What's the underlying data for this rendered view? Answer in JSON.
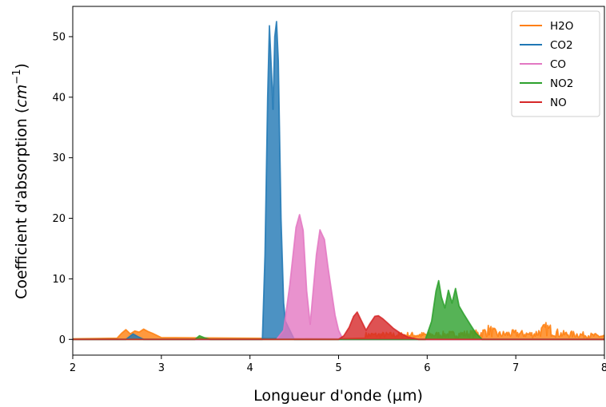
{
  "chart_data": {
    "type": "area",
    "xlabel": "Longueur d'onde (µm)",
    "ylabel_main": "Coefficient d'absorption (",
    "ylabel_unit": "cm",
    "ylabel_exp": "−1",
    "ylabel_close": ")",
    "xlim": [
      2,
      8
    ],
    "ylim": [
      -2.6,
      55
    ],
    "xticks": [
      2,
      3,
      4,
      5,
      6,
      7,
      8
    ],
    "yticks": [
      0,
      10,
      20,
      30,
      40,
      50
    ],
    "legend_position": "top-right",
    "grid": false,
    "series": [
      {
        "name": "H2O",
        "color": "#ff7f0e",
        "noise": {
          "from": 5.3,
          "to": 8.0,
          "amp": 1.2
        },
        "x": [
          2.0,
          2.5,
          2.55,
          2.6,
          2.65,
          2.7,
          2.75,
          2.8,
          2.85,
          2.9,
          3.0,
          5.0,
          5.3,
          6.0,
          6.6,
          6.7,
          6.8,
          7.0,
          7.2,
          7.35,
          7.5,
          7.7,
          8.0
        ],
        "y": [
          0.1,
          0.2,
          1.0,
          1.6,
          0.9,
          1.4,
          1.2,
          1.7,
          1.3,
          1.0,
          0.3,
          0.1,
          0.9,
          0.9,
          1.2,
          1.9,
          1.0,
          1.2,
          1.0,
          2.2,
          1.1,
          1.0,
          0.6
        ]
      },
      {
        "name": "CO2",
        "color": "#1f77b4",
        "x": [
          2.0,
          2.6,
          2.68,
          2.73,
          2.8,
          4.14,
          4.17,
          4.2,
          4.22,
          4.24,
          4.26,
          4.28,
          4.3,
          4.32,
          4.35,
          4.38,
          4.4,
          4.5,
          8.0
        ],
        "y": [
          0,
          0,
          0.9,
          0.5,
          0,
          0,
          14,
          40,
          51.8,
          45,
          38,
          50,
          52.5,
          46,
          20,
          6,
          3,
          0,
          0
        ]
      },
      {
        "name": "CO",
        "color": "#e377c2",
        "x": [
          4.3,
          4.38,
          4.45,
          4.52,
          4.56,
          4.6,
          4.64,
          4.68,
          4.75,
          4.79,
          4.84,
          4.88,
          4.92,
          4.96,
          5.0,
          5.05,
          8.0
        ],
        "y": [
          0,
          1.5,
          9,
          18.5,
          20.6,
          18,
          8,
          2.5,
          14,
          18.1,
          16.5,
          12,
          8,
          4,
          1.5,
          0,
          0
        ]
      },
      {
        "name": "NO2",
        "color": "#2ca02c",
        "x": [
          2.0,
          3.38,
          3.43,
          3.48,
          3.55,
          5.98,
          6.05,
          6.1,
          6.13,
          6.16,
          6.2,
          6.24,
          6.28,
          6.32,
          6.36,
          6.42,
          6.48,
          6.55,
          6.62,
          8.0
        ],
        "y": [
          0,
          0,
          0.6,
          0.3,
          0,
          0,
          3,
          8,
          9.7,
          7,
          5.2,
          8.1,
          6,
          8.4,
          5.5,
          4,
          2.6,
          1,
          0,
          0
        ]
      },
      {
        "name": "NO",
        "color": "#d62728",
        "x": [
          2.0,
          5.0,
          5.06,
          5.12,
          5.17,
          5.21,
          5.26,
          5.31,
          5.35,
          5.41,
          5.45,
          5.5,
          5.56,
          5.62,
          5.7,
          5.78,
          5.9,
          8.0
        ],
        "y": [
          0,
          0,
          0.6,
          2.0,
          3.8,
          4.5,
          3.0,
          1.5,
          2.5,
          3.8,
          3.9,
          3.4,
          2.6,
          1.8,
          1.0,
          0.4,
          0,
          0
        ]
      }
    ]
  }
}
